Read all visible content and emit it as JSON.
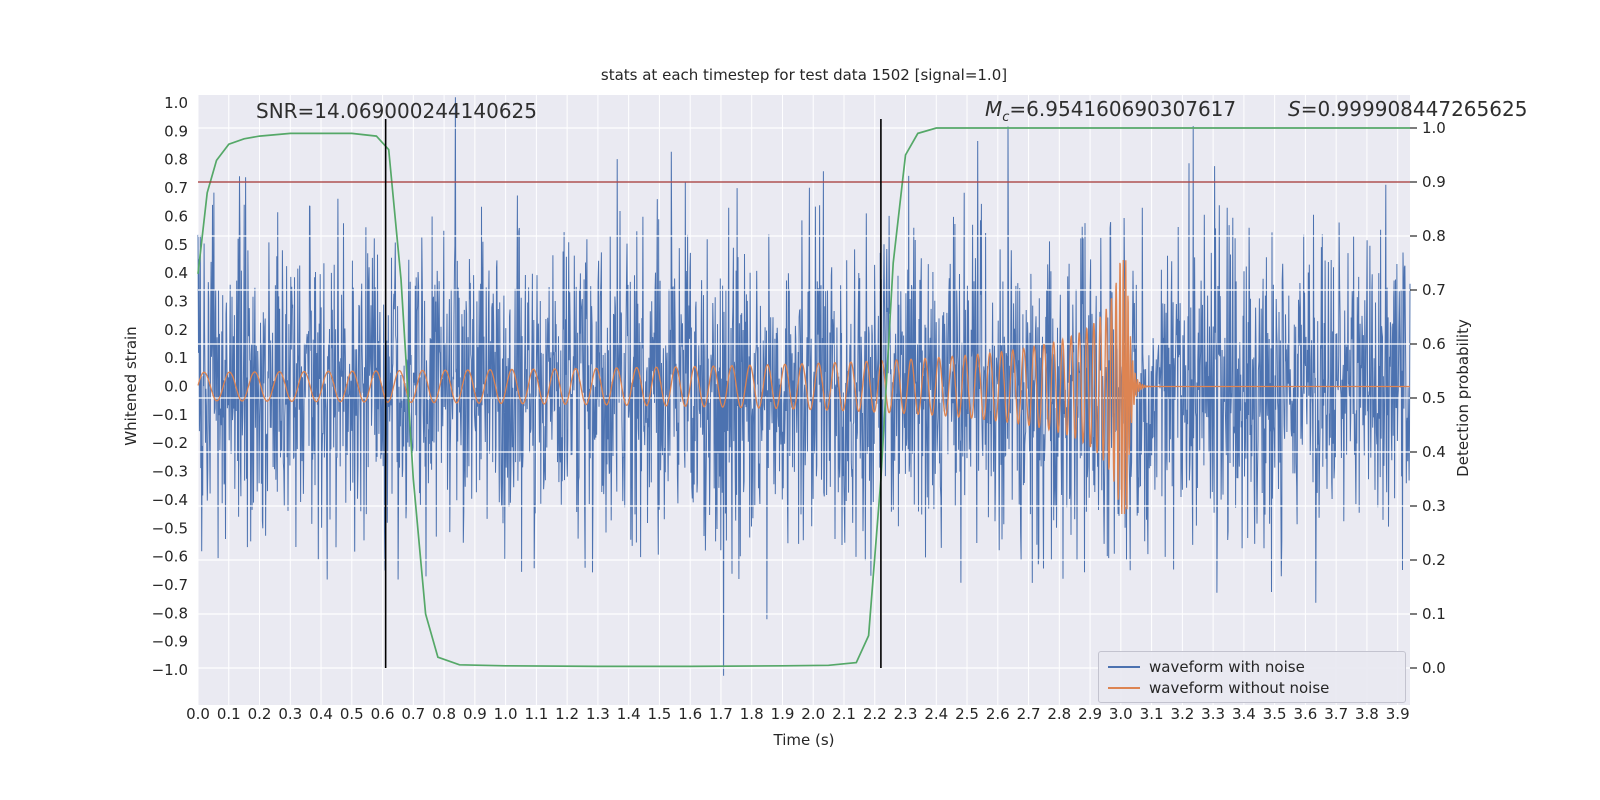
{
  "chart_data": {
    "type": "line",
    "title": "stats at each timestep for test data 1502 [signal=1.0]",
    "xlabel": "Time (s)",
    "ylabel_left": "Whitened strain",
    "ylabel_right": "Detection probability",
    "xlim": [
      0.0,
      3.94
    ],
    "ylim_left": [
      -1.05,
      1.05
    ],
    "ylim_right": [
      0.0,
      1.0
    ],
    "grid": "white gridlines on light gray background",
    "legend_position": "lower right",
    "xticks": [
      "0.0",
      "0.1",
      "0.2",
      "0.3",
      "0.4",
      "0.5",
      "0.6",
      "0.7",
      "0.8",
      "0.9",
      "1.0",
      "1.1",
      "1.2",
      "1.3",
      "1.4",
      "1.5",
      "1.6",
      "1.7",
      "1.8",
      "1.9",
      "2.0",
      "2.1",
      "2.2",
      "2.3",
      "2.4",
      "2.5",
      "2.6",
      "2.7",
      "2.8",
      "2.9",
      "3.0",
      "3.1",
      "3.2",
      "3.3",
      "3.4",
      "3.5",
      "3.6",
      "3.7",
      "3.8",
      "3.9"
    ],
    "yticks_left": [
      "1.0",
      "0.9",
      "0.8",
      "0.7",
      "0.6",
      "0.5",
      "0.4",
      "0.3",
      "0.2",
      "0.1",
      "0.0",
      "−0.1",
      "−0.2",
      "−0.3",
      "−0.4",
      "−0.5",
      "−0.6",
      "−0.7",
      "−0.8",
      "−0.9",
      "−1.0"
    ],
    "yticks_right": [
      "1.0",
      "0.9",
      "0.8",
      "0.7",
      "0.6",
      "0.5",
      "0.4",
      "0.3",
      "0.2",
      "0.1",
      "0.0"
    ],
    "annotations": {
      "snr_label": "SNR=14.069000244140625",
      "snr_value": 14.069000244140625,
      "mc_prefix": "M",
      "mc_sub": "c",
      "mc_rest": "=6.954160690307617",
      "mc_value": 6.954160690307617,
      "s_prefix": "S",
      "s_rest": "=0.999908447265625",
      "s_value": 0.999908447265625
    },
    "threshold_line": {
      "axis": "right",
      "value": 0.9,
      "color": "#a03232"
    },
    "vlines": {
      "times": [
        0.61,
        2.22
      ],
      "color": "#000000"
    },
    "series": [
      {
        "name": "waveform with noise",
        "color": "#4c72b0",
        "kind": "noise",
        "seed": 1502,
        "sigma": 0.28,
        "samples": 2600,
        "clip": 1.02
      },
      {
        "name": "waveform without noise",
        "color": "#dd8452",
        "kind": "chirp",
        "merger_time_s": 3.02,
        "start_amplitude": 0.05,
        "peak_amplitude": 0.45,
        "start_frequency_hz": 12,
        "max_frequency_hz": 130,
        "ringdown_tau_s": 0.012
      },
      {
        "name": "detection probability",
        "color": "#55a868",
        "kind": "line",
        "axis": "right",
        "x": [
          0.0,
          0.03,
          0.06,
          0.1,
          0.15,
          0.2,
          0.3,
          0.4,
          0.5,
          0.58,
          0.62,
          0.66,
          0.7,
          0.74,
          0.78,
          0.85,
          1.0,
          1.3,
          1.6,
          1.9,
          2.05,
          2.14,
          2.18,
          2.22,
          2.26,
          2.3,
          2.34,
          2.4,
          2.6,
          3.0,
          3.5,
          3.94
        ],
        "y": [
          0.73,
          0.88,
          0.94,
          0.97,
          0.98,
          0.985,
          0.99,
          0.99,
          0.99,
          0.985,
          0.96,
          0.72,
          0.35,
          0.1,
          0.02,
          0.006,
          0.004,
          0.003,
          0.003,
          0.004,
          0.005,
          0.01,
          0.06,
          0.35,
          0.75,
          0.95,
          0.99,
          1.0,
          1.0,
          1.0,
          1.0,
          1.0
        ]
      }
    ],
    "legend": {
      "items": [
        {
          "label": "waveform with noise",
          "color": "#4c72b0"
        },
        {
          "label": "waveform without noise",
          "color": "#dd8452"
        }
      ]
    },
    "colors": {
      "background": "#eaeaf2",
      "grid": "#ffffff",
      "noise_line": "#4c72b0",
      "clean_line": "#dd8452",
      "probability_line": "#55a868",
      "threshold_line": "#a03232",
      "vline": "#000000",
      "text": "#262626"
    }
  }
}
